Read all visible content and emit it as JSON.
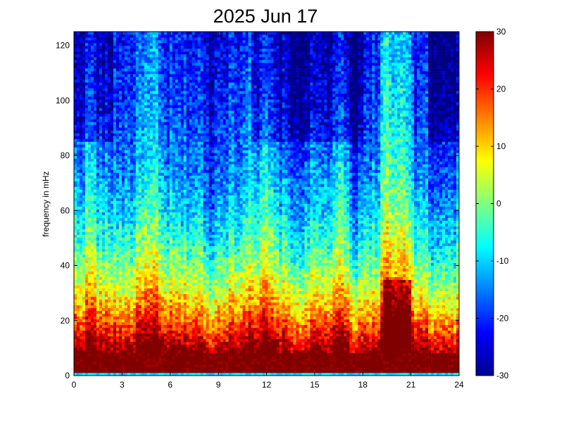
{
  "chart_data": {
    "type": "heatmap",
    "title": "2025 Jun 17",
    "xlabel": "",
    "ylabel": "frequency in mHz",
    "xlim": [
      0,
      24
    ],
    "ylim": [
      0,
      125
    ],
    "xticks": [
      "0",
      "3",
      "6",
      "9",
      "12",
      "15",
      "18",
      "21",
      "24"
    ],
    "yticks": [
      "0",
      "20",
      "40",
      "60",
      "80",
      "100",
      "120"
    ],
    "colorbar": {
      "range": [
        -30,
        30
      ],
      "ticks": [
        "30",
        "20",
        "10",
        "0",
        "-10",
        "-20",
        "-30"
      ],
      "colormap": "jet"
    },
    "grid": false,
    "legend": "none",
    "resolution": {
      "x_bins": 137,
      "y_bins": 122
    },
    "value_model": {
      "high_freq_floor": -26,
      "low_freq_peak": 30,
      "bright_bands_hours": [
        1,
        4.3,
        5,
        11,
        12,
        16.7,
        19.5,
        20.5
      ],
      "dark_bands_hours": [
        8.5,
        14,
        17.5,
        22.5,
        23.5
      ]
    }
  }
}
